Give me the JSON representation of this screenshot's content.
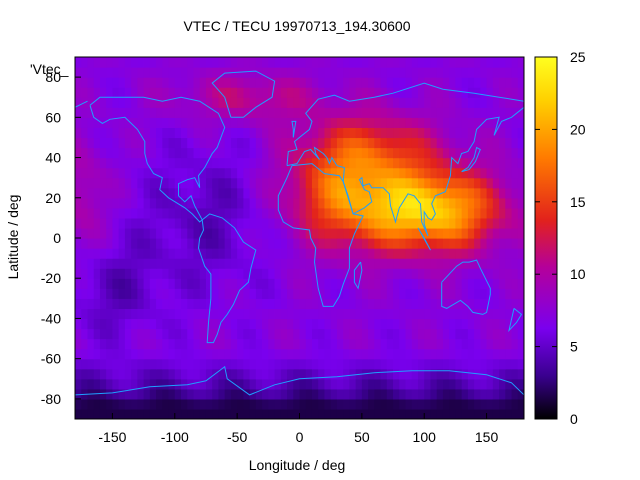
{
  "chart_data": {
    "type": "heatmap",
    "title": "VTEC / TECU 19970713_194.30600",
    "xlabel": "Longitude / deg",
    "ylabel": "Latitude / deg",
    "xlim": [
      -180,
      180
    ],
    "ylim": [
      -90,
      90
    ],
    "x_ticks": [
      -150,
      -100,
      -50,
      0,
      50,
      100,
      150
    ],
    "y_ticks": [
      -80,
      -60,
      -40,
      -20,
      0,
      20,
      40,
      60,
      80
    ],
    "colorbar": {
      "range": [
        0,
        25
      ],
      "ticks": [
        0,
        5,
        10,
        15,
        20,
        25
      ],
      "palette": [
        "#000000",
        "#3a008f",
        "#7a00ee",
        "#b5009a",
        "#e2221c",
        "#ff7a00",
        "#ffd000",
        "#ffff20"
      ]
    },
    "legend_label": "'Vtec_",
    "coastline_color": "#1f9fff",
    "features": {
      "background_level": 7,
      "equatorial_peak": {
        "lon": 110,
        "lat": 12,
        "value": 24
      },
      "afternoon_region": "Africa / Middle East / South Asia, values 14-22",
      "polar_south_min": 1.5
    },
    "grid": false,
    "legend": "top-left"
  }
}
